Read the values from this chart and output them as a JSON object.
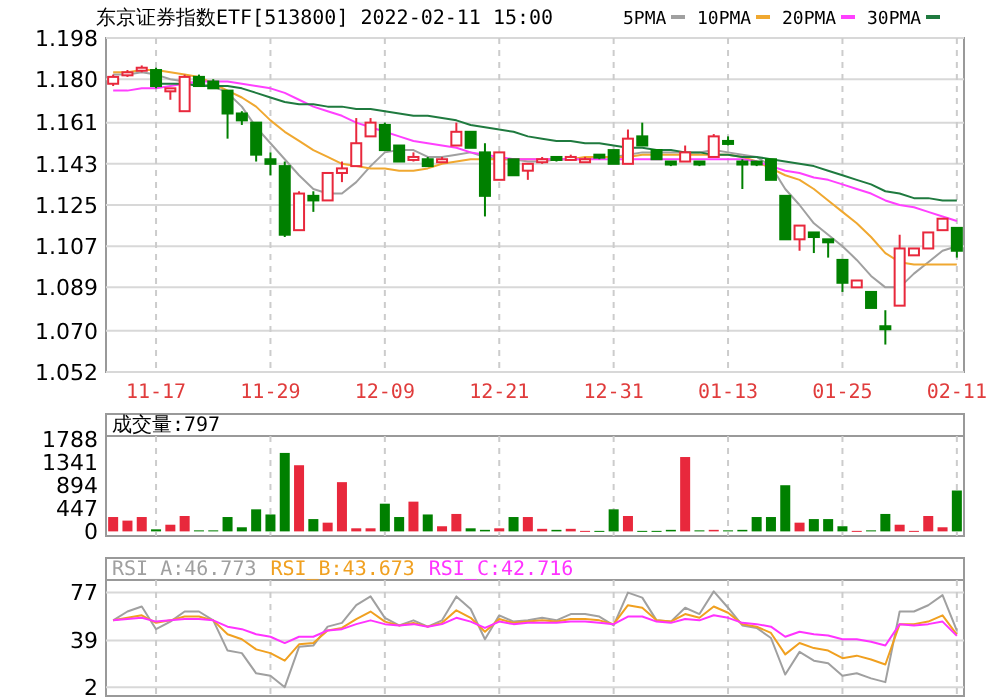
{
  "chart_data": [
    {
      "type": "candlestick",
      "title": "东京证券指数ETF[513800]  2022-02-11 15:00",
      "legend": "top right",
      "grid": true,
      "tick_labels": "xy",
      "categories": [
        null,
        null,
        null,
        "11-17",
        null,
        null,
        null,
        null,
        null,
        null,
        null,
        "11-29",
        null,
        null,
        null,
        null,
        null,
        null,
        null,
        "12-09",
        null,
        null,
        null,
        null,
        null,
        null,
        null,
        "12-21",
        null,
        null,
        null,
        null,
        null,
        null,
        null,
        "12-31",
        null,
        null,
        null,
        null,
        null,
        null,
        null,
        "01-13",
        null,
        null,
        null,
        null,
        null,
        null,
        null,
        "01-25",
        null,
        null,
        null,
        null,
        null,
        null,
        null,
        "02-11"
      ],
      "ylim": [
        1.052,
        1.198
      ],
      "yticks": [
        1.052,
        {
          "value": 1.07,
          "label": "1.070"
        },
        1.089,
        1.107,
        1.125,
        1.143,
        1.161,
        {
          "value": 1.18,
          "label": "1.180"
        },
        1.198
      ],
      "ohlc": [
        [
          1.178,
          1.182,
          1.177,
          1.181
        ],
        [
          1.182,
          1.184,
          1.181,
          1.183
        ],
        [
          1.184,
          1.186,
          1.183,
          1.185
        ],
        [
          1.184,
          1.185,
          1.176,
          1.177
        ],
        [
          1.175,
          1.176,
          1.171,
          1.176
        ],
        [
          1.166,
          1.182,
          1.166,
          1.181
        ],
        [
          1.181,
          1.182,
          1.177,
          1.177
        ],
        [
          1.179,
          1.18,
          1.176,
          1.176
        ],
        [
          1.175,
          1.175,
          1.154,
          1.165
        ],
        [
          1.165,
          1.166,
          1.16,
          1.162
        ],
        [
          1.161,
          1.161,
          1.144,
          1.147
        ],
        [
          1.145,
          1.148,
          1.138,
          1.143
        ],
        [
          1.142,
          1.144,
          1.111,
          1.112
        ],
        [
          1.114,
          1.131,
          1.114,
          1.13
        ],
        [
          1.129,
          1.131,
          1.122,
          1.127
        ],
        [
          1.127,
          1.139,
          1.127,
          1.139
        ],
        [
          1.139,
          1.144,
          1.135,
          1.141
        ],
        [
          1.142,
          1.163,
          1.142,
          1.152
        ],
        [
          1.155,
          1.163,
          1.155,
          1.161
        ],
        [
          1.16,
          1.161,
          1.149,
          1.149
        ],
        [
          1.151,
          1.151,
          1.144,
          1.144
        ],
        [
          1.145,
          1.148,
          1.144,
          1.146
        ],
        [
          1.145,
          1.146,
          1.142,
          1.142
        ],
        [
          1.144,
          1.146,
          1.144,
          1.145
        ],
        [
          1.151,
          1.161,
          1.151,
          1.157
        ],
        [
          1.157,
          1.157,
          1.15,
          1.15
        ],
        [
          1.148,
          1.152,
          1.12,
          1.129
        ],
        [
          1.136,
          1.148,
          1.136,
          1.148
        ],
        [
          1.145,
          1.145,
          1.138,
          1.138
        ],
        [
          1.14,
          1.143,
          1.136,
          1.143
        ],
        [
          1.144,
          1.146,
          1.143,
          1.145
        ],
        [
          1.146,
          1.146,
          1.144,
          1.145
        ],
        [
          1.145,
          1.147,
          1.145,
          1.146
        ],
        [
          1.144,
          1.146,
          1.144,
          1.145
        ],
        [
          1.147,
          1.147,
          1.145,
          1.146
        ],
        [
          1.149,
          1.149,
          1.143,
          1.143
        ],
        [
          1.143,
          1.158,
          1.143,
          1.154
        ],
        [
          1.155,
          1.161,
          1.151,
          1.151
        ],
        [
          1.149,
          1.149,
          1.145,
          1.145
        ],
        [
          1.144,
          1.144,
          1.142,
          1.143
        ],
        [
          1.144,
          1.151,
          1.144,
          1.148
        ],
        [
          1.144,
          1.144,
          1.142,
          1.143
        ],
        [
          1.146,
          1.156,
          1.146,
          1.155
        ],
        [
          1.153,
          1.155,
          1.151,
          1.152
        ],
        [
          1.144,
          1.145,
          1.132,
          1.143
        ],
        [
          1.144,
          1.144,
          1.142,
          1.143
        ],
        [
          1.145,
          1.145,
          1.136,
          1.136
        ],
        [
          1.129,
          1.129,
          1.11,
          1.11
        ],
        [
          1.11,
          1.116,
          1.105,
          1.116
        ],
        [
          1.113,
          1.113,
          1.104,
          1.111
        ],
        [
          1.11,
          1.11,
          1.102,
          1.109
        ],
        [
          1.101,
          1.101,
          1.087,
          1.091
        ],
        [
          1.089,
          1.092,
          1.089,
          1.092
        ],
        [
          1.087,
          1.087,
          1.08,
          1.08
        ],
        [
          1.072,
          1.079,
          1.064,
          1.071
        ],
        [
          1.081,
          1.112,
          1.081,
          1.106
        ],
        [
          1.103,
          1.106,
          1.103,
          1.106
        ],
        [
          1.106,
          1.113,
          1.106,
          1.113
        ],
        [
          1.114,
          1.119,
          1.114,
          1.119
        ],
        [
          1.115,
          1.115,
          1.102,
          1.105
        ]
      ],
      "colors": [
        "#e8283c",
        "#e8283c",
        "#e8283c",
        "#008000",
        "#e8283c",
        "#e8283c",
        "#008000",
        "#008000",
        "#008000",
        "#008000",
        "#008000",
        "#008000",
        "#008000",
        "#e8283c",
        "#008000",
        "#e8283c",
        "#e8283c",
        "#e8283c",
        "#e8283c",
        "#008000",
        "#008000",
        "#e8283c",
        "#008000",
        "#e8283c",
        "#e8283c",
        "#008000",
        "#008000",
        "#e8283c",
        "#008000",
        "#e8283c",
        "#e8283c",
        "#008000",
        "#e8283c",
        "#e8283c",
        "#008000",
        "#008000",
        "#e8283c",
        "#008000",
        "#008000",
        "#008000",
        "#e8283c",
        "#008000",
        "#e8283c",
        "#008000",
        "#008000",
        "#008000",
        "#008000",
        "#008000",
        "#e8283c",
        "#008000",
        "#008000",
        "#008000",
        "#e8283c",
        "#008000",
        "#008000",
        "#e8283c",
        "#e8283c",
        "#e8283c",
        "#e8283c",
        "#008000"
      ],
      "series": [
        {
          "type": "line",
          "name": "5PMA",
          "color": "#a0a0a0",
          "values": [
            1.182,
            1.182,
            1.183,
            1.182,
            1.18,
            1.179,
            1.178,
            1.177,
            1.174,
            1.168,
            1.159,
            1.152,
            1.145,
            1.138,
            1.132,
            1.13,
            1.13,
            1.135,
            1.142,
            1.148,
            1.149,
            1.149,
            1.146,
            1.146,
            1.147,
            1.148,
            1.146,
            1.145,
            1.145,
            1.144,
            1.144,
            1.145,
            1.145,
            1.145,
            1.146,
            1.146,
            1.147,
            1.148,
            1.148,
            1.148,
            1.148,
            1.148,
            1.149,
            1.148,
            1.147,
            1.146,
            1.142,
            1.132,
            1.125,
            1.117,
            1.112,
            1.107,
            1.101,
            1.094,
            1.089,
            1.089,
            1.095,
            1.1,
            1.105,
            1.107
          ]
        },
        {
          "type": "line",
          "name": "10PMA",
          "color": "#f0a830",
          "values": [
            1.183,
            1.183,
            1.184,
            1.184,
            1.183,
            1.182,
            1.181,
            1.178,
            1.175,
            1.172,
            1.168,
            1.162,
            1.157,
            1.153,
            1.149,
            1.146,
            1.143,
            1.142,
            1.141,
            1.141,
            1.14,
            1.14,
            1.141,
            1.143,
            1.144,
            1.145,
            1.145,
            1.145,
            1.145,
            1.145,
            1.145,
            1.145,
            1.145,
            1.146,
            1.146,
            1.146,
            1.146,
            1.147,
            1.147,
            1.147,
            1.147,
            1.147,
            1.147,
            1.147,
            1.146,
            1.144,
            1.141,
            1.138,
            1.136,
            1.132,
            1.127,
            1.122,
            1.117,
            1.111,
            1.104,
            1.1,
            1.099,
            1.099,
            1.099,
            1.099
          ]
        },
        {
          "type": "line",
          "name": "20PMA",
          "color": "#ff40ff",
          "values": [
            1.175,
            1.175,
            1.176,
            1.176,
            1.177,
            1.178,
            1.179,
            1.179,
            1.179,
            1.178,
            1.177,
            1.176,
            1.174,
            1.171,
            1.168,
            1.166,
            1.164,
            1.161,
            1.159,
            1.157,
            1.155,
            1.153,
            1.152,
            1.151,
            1.15,
            1.148,
            1.147,
            1.146,
            1.145,
            1.145,
            1.145,
            1.145,
            1.145,
            1.145,
            1.145,
            1.145,
            1.145,
            1.145,
            1.145,
            1.145,
            1.145,
            1.145,
            1.145,
            1.145,
            1.145,
            1.144,
            1.142,
            1.14,
            1.139,
            1.137,
            1.136,
            1.134,
            1.132,
            1.13,
            1.127,
            1.125,
            1.124,
            1.122,
            1.12,
            1.118
          ]
        },
        {
          "type": "line",
          "name": "30PMA",
          "color": "#1f7a3f",
          "values": [
            null,
            null,
            null,
            1.178,
            1.178,
            1.178,
            1.177,
            1.177,
            1.177,
            1.176,
            1.174,
            1.172,
            1.17,
            1.169,
            1.169,
            1.168,
            1.168,
            1.167,
            1.167,
            1.166,
            1.165,
            1.164,
            1.164,
            1.163,
            1.162,
            1.16,
            1.159,
            1.158,
            1.157,
            1.155,
            1.154,
            1.153,
            1.153,
            1.152,
            1.152,
            1.151,
            1.15,
            1.15,
            1.149,
            1.149,
            1.148,
            1.148,
            1.147,
            1.147,
            1.146,
            1.146,
            1.145,
            1.144,
            1.143,
            1.142,
            1.14,
            1.138,
            1.136,
            1.134,
            1.131,
            1.13,
            1.128,
            1.128,
            1.127,
            1.127
          ]
        }
      ]
    },
    {
      "type": "bar",
      "title": "成交量:797",
      "grid": "x",
      "tick_labels": "y",
      "categories": [
        null,
        null,
        null,
        null,
        null,
        null,
        null,
        null,
        null,
        null,
        null,
        null,
        null,
        null,
        null,
        null,
        null,
        null,
        null,
        null,
        null,
        null,
        null,
        null,
        null,
        null,
        null,
        null,
        null,
        null,
        null,
        null,
        null,
        null,
        null,
        null,
        null,
        null,
        null,
        null,
        null,
        null,
        null,
        null,
        null,
        null,
        null,
        null,
        null,
        null,
        null,
        null,
        null,
        null,
        null,
        null,
        null,
        null,
        null,
        null
      ],
      "ylim": [
        -90,
        1860
      ],
      "yticks": [
        0,
        447,
        894,
        1341,
        1788
      ],
      "values": [
        280,
        210,
        280,
        40,
        130,
        300,
        20,
        20,
        280,
        80,
        430,
        330,
        1530,
        1290,
        240,
        170,
        960,
        60,
        60,
        540,
        280,
        580,
        330,
        100,
        340,
        60,
        30,
        60,
        280,
        280,
        50,
        30,
        50,
        10,
        10,
        430,
        300,
        10,
        10,
        30,
        1450,
        20,
        30,
        20,
        30,
        280,
        280,
        900,
        170,
        240,
        240,
        100,
        10,
        20,
        340,
        130,
        10,
        300,
        80,
        797
      ],
      "colors": [
        "#e8283c",
        "#e8283c",
        "#e8283c",
        "#008000",
        "#e8283c",
        "#e8283c",
        "#008000",
        "#008000",
        "#008000",
        "#008000",
        "#008000",
        "#008000",
        "#008000",
        "#e8283c",
        "#008000",
        "#e8283c",
        "#e8283c",
        "#e8283c",
        "#e8283c",
        "#008000",
        "#008000",
        "#e8283c",
        "#008000",
        "#e8283c",
        "#e8283c",
        "#008000",
        "#008000",
        "#e8283c",
        "#008000",
        "#e8283c",
        "#e8283c",
        "#008000",
        "#e8283c",
        "#e8283c",
        "#008000",
        "#008000",
        "#e8283c",
        "#008000",
        "#008000",
        "#008000",
        "#e8283c",
        "#008000",
        "#e8283c",
        "#008000",
        "#008000",
        "#008000",
        "#008000",
        "#008000",
        "#e8283c",
        "#008000",
        "#008000",
        "#008000",
        "#e8283c",
        "#008000",
        "#008000",
        "#e8283c",
        "#e8283c",
        "#e8283c",
        "#e8283c",
        "#008000"
      ]
    },
    {
      "type": "line",
      "legend": "top left",
      "grid": true,
      "tick_labels": "y",
      "categories": [
        null,
        null,
        null,
        null,
        null,
        null,
        null,
        null,
        null,
        null,
        null,
        null,
        null,
        null,
        null,
        null,
        null,
        null,
        null,
        null,
        null,
        null,
        null,
        null,
        null,
        null,
        null,
        null,
        null,
        null,
        null,
        null,
        null,
        null,
        null,
        null,
        null,
        null,
        null,
        null,
        null,
        null,
        null,
        null,
        null,
        null,
        null,
        null,
        null,
        null,
        null,
        null,
        null,
        null,
        null,
        null,
        null,
        null,
        null,
        null
      ],
      "ylim": [
        -5,
        87
      ],
      "yticks": [
        2,
        39,
        77
      ],
      "series": [
        {
          "name": "RSI_A:46.773",
          "color": "#a0a0a0",
          "values": [
            55,
            62,
            66,
            48,
            54,
            62,
            62,
            55,
            31,
            29,
            13,
            11,
            2,
            34,
            35,
            50,
            53,
            67,
            74,
            57,
            51,
            55,
            50,
            55,
            74,
            64,
            40,
            59,
            54,
            55,
            57,
            55,
            60,
            60,
            58,
            51,
            77,
            73,
            55,
            54,
            65,
            60,
            78,
            65,
            51,
            49,
            41,
            12,
            30,
            23,
            21,
            11,
            13,
            9,
            6,
            62,
            62,
            67,
            75,
            46.773
          ]
        },
        {
          "name": "RSI_B:43.673",
          "color": "#f0a020",
          "values": [
            55,
            57,
            59,
            53,
            55,
            58,
            58,
            55,
            44,
            40,
            32,
            29,
            23,
            36,
            37,
            47,
            49,
            56,
            62,
            54,
            51,
            53,
            50,
            53,
            63,
            57,
            46,
            56,
            53,
            54,
            55,
            54,
            56,
            56,
            55,
            52,
            67,
            65,
            55,
            54,
            60,
            57,
            66,
            61,
            52,
            50,
            45,
            28,
            37,
            33,
            31,
            25,
            27,
            24,
            20,
            52,
            52,
            54,
            59,
            43.673
          ]
        },
        {
          "name": "RSI_C:42.716",
          "color": "#ff33ff",
          "values": [
            55,
            56,
            57,
            54,
            55,
            56,
            56,
            55,
            50,
            48,
            44,
            42,
            37,
            42,
            42,
            47,
            48,
            52,
            55,
            52,
            51,
            52,
            50,
            52,
            57,
            54,
            49,
            54,
            52,
            53,
            53,
            53,
            54,
            54,
            53,
            52,
            58,
            58,
            54,
            53,
            56,
            55,
            59,
            57,
            53,
            52,
            50,
            42,
            46,
            44,
            43,
            40,
            40,
            38,
            35,
            52,
            51,
            52,
            54,
            42.716
          ]
        }
      ]
    }
  ]
}
